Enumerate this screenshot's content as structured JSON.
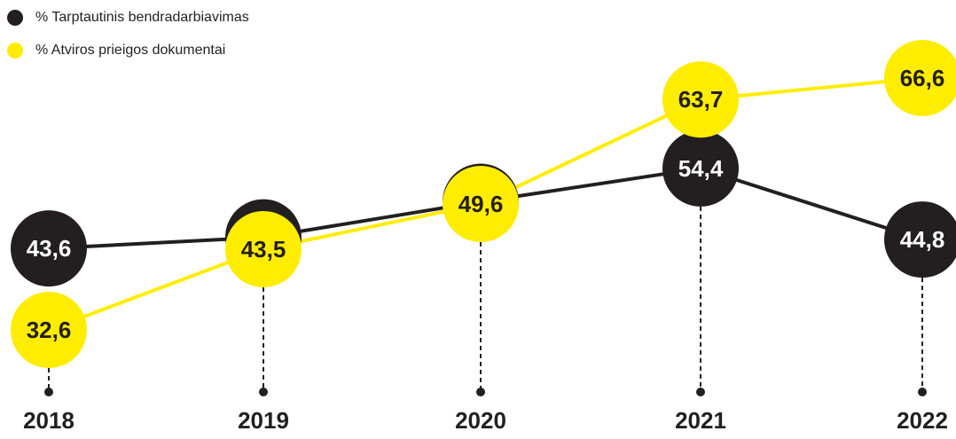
{
  "chart_data": {
    "type": "line",
    "categories": [
      "2018",
      "2019",
      "2020",
      "2021",
      "2022"
    ],
    "series": [
      {
        "name": "% Tarptautinis bendradarbiavimas",
        "color": "#231f20",
        "values": [
          43.6,
          45.1,
          49.9,
          54.4,
          44.8
        ],
        "value_labels": [
          "43,6",
          "45,1",
          "49,9",
          "54,4",
          "44,8"
        ]
      },
      {
        "name": "% Atviros prieigos dokumentai",
        "color": "#ffed00",
        "values": [
          32.6,
          43.5,
          49.6,
          63.7,
          66.6
        ],
        "value_labels": [
          "32,6",
          "43,5",
          "49,6",
          "63,7",
          "66,6"
        ]
      }
    ]
  }
}
